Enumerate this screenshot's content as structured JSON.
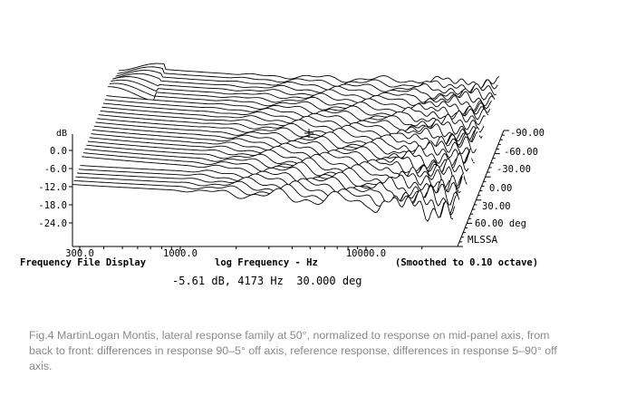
{
  "chart_data": {
    "type": "line",
    "title": "Frequency File Display",
    "xlabel": "log Frequency - Hz",
    "ylabel": "dB",
    "x_scale": "log",
    "xlim": [
      300,
      20000
    ],
    "x_ticks": [
      "300.0",
      "1000.0",
      "10000.0"
    ],
    "y_ticks": [
      "0.0",
      "-6.0",
      "-12.0",
      "-18.0",
      "-24.0"
    ],
    "smoothing_note": "(Smoothed to 0.10 octave)",
    "readout": "-5.61 dB, 4173 Hz  30.000 deg",
    "depth_labels": [
      "-90.00",
      "-60.00",
      "-30.00",
      "0.00",
      "30.00",
      "60.00 deg"
    ],
    "software_label": "MLSSA",
    "series_count": 31
  },
  "caption": "Fig.4 MartinLogan Montis, lateral response family at 50°, normalized to response on mid-panel axis, from back to front: differences in response 90–5° off axis, reference response, differences in response 5–90° off axis."
}
